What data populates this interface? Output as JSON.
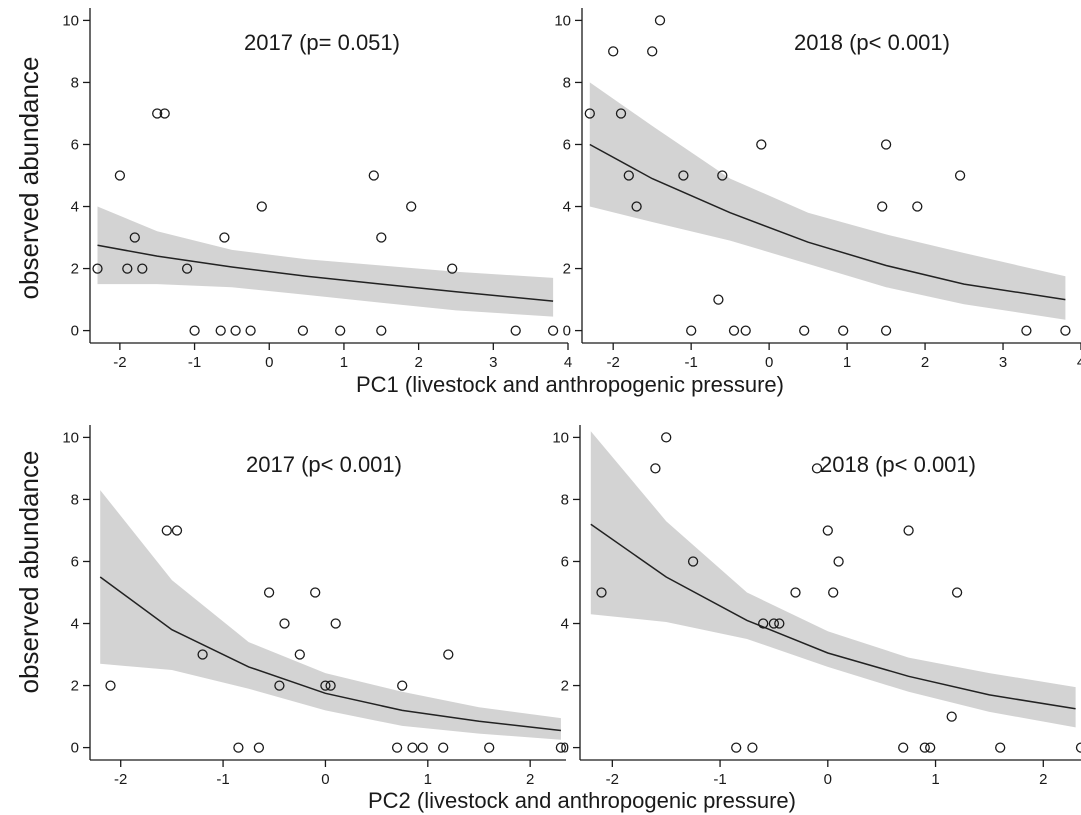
{
  "figure": {
    "ylabel_top": "observed abundance",
    "ylabel_bottom": "observed abundance",
    "xlabel_top": "PC1 (livestock and anthropogenic pressure)",
    "xlabel_bottom": "PC2 (livestock and anthropogenic pressure)"
  },
  "colors": {
    "band": "#d3d3d3",
    "line": "#222222",
    "point_stroke": "#1a1a1a",
    "axis": "#1a1a1a"
  },
  "chart_data": [
    {
      "type": "scatter",
      "title": "2017 (p= 0.051)",
      "xlabel": "PC1 (livestock and anthropogenic pressure)",
      "ylabel": "observed abundance",
      "xlim": [
        -2.4,
        4.0
      ],
      "ylim": [
        -0.4,
        10.4
      ],
      "xticks": [
        -2,
        -1,
        0,
        1,
        2,
        3,
        4
      ],
      "yticks": [
        0,
        2,
        4,
        6,
        8,
        10
      ],
      "points": [
        [
          -2.3,
          2
        ],
        [
          -2.0,
          5
        ],
        [
          -1.9,
          2
        ],
        [
          -1.8,
          3
        ],
        [
          -1.7,
          2
        ],
        [
          -1.5,
          7
        ],
        [
          -1.4,
          7
        ],
        [
          -1.1,
          2
        ],
        [
          -1.0,
          0
        ],
        [
          -0.65,
          0
        ],
        [
          -0.6,
          3
        ],
        [
          -0.45,
          0
        ],
        [
          -0.25,
          0
        ],
        [
          -0.1,
          4
        ],
        [
          0.45,
          0
        ],
        [
          0.95,
          0
        ],
        [
          1.4,
          5
        ],
        [
          1.5,
          3
        ],
        [
          1.5,
          0
        ],
        [
          1.9,
          4
        ],
        [
          2.45,
          2
        ],
        [
          3.3,
          0
        ],
        [
          3.8,
          0
        ]
      ],
      "fit": {
        "x": [
          -2.3,
          -1.5,
          -0.5,
          0.5,
          1.5,
          2.5,
          3.8
        ],
        "y": [
          2.75,
          2.4,
          2.05,
          1.75,
          1.5,
          1.25,
          0.95
        ]
      },
      "ci_lower": [
        1.5,
        1.5,
        1.4,
        1.15,
        0.9,
        0.65,
        0.45
      ],
      "ci_upper": [
        4.0,
        3.2,
        2.6,
        2.3,
        2.1,
        1.9,
        1.7
      ]
    },
    {
      "type": "scatter",
      "title": "2018 (p< 0.001)",
      "xlabel": "PC1 (livestock and anthropogenic pressure)",
      "ylabel": "",
      "xlim": [
        -2.4,
        4.0
      ],
      "ylim": [
        -0.4,
        10.4
      ],
      "xticks": [
        -2,
        -1,
        0,
        1,
        2,
        3,
        4
      ],
      "yticks": [
        0,
        2,
        4,
        6,
        8,
        10
      ],
      "points": [
        [
          -2.3,
          7
        ],
        [
          -2.0,
          9
        ],
        [
          -1.9,
          7
        ],
        [
          -1.8,
          5
        ],
        [
          -1.7,
          4
        ],
        [
          -1.5,
          9
        ],
        [
          -1.4,
          10
        ],
        [
          -1.1,
          5
        ],
        [
          -1.0,
          0
        ],
        [
          -0.65,
          1
        ],
        [
          -0.6,
          5
        ],
        [
          -0.45,
          0
        ],
        [
          -0.3,
          0
        ],
        [
          -0.1,
          6
        ],
        [
          0.45,
          0
        ],
        [
          0.95,
          0
        ],
        [
          1.45,
          4
        ],
        [
          1.5,
          6
        ],
        [
          1.5,
          0
        ],
        [
          1.9,
          4
        ],
        [
          2.45,
          5
        ],
        [
          3.3,
          0
        ],
        [
          3.8,
          0
        ]
      ],
      "fit": {
        "x": [
          -2.3,
          -1.5,
          -0.5,
          0.5,
          1.5,
          2.5,
          3.8
        ],
        "y": [
          6.0,
          4.9,
          3.8,
          2.85,
          2.1,
          1.5,
          1.0
        ]
      },
      "ci_lower": [
        4.0,
        3.5,
        2.9,
        2.15,
        1.4,
        0.85,
        0.35
      ],
      "ci_upper": [
        8.0,
        6.6,
        4.9,
        3.8,
        3.1,
        2.5,
        1.75
      ]
    },
    {
      "type": "scatter",
      "title": "2017 (p< 0.001)",
      "xlabel": "PC2 (livestock and anthropogenic pressure)",
      "ylabel": "observed abundance",
      "xlim": [
        -2.3,
        2.35
      ],
      "ylim": [
        -0.4,
        10.4
      ],
      "xticks": [
        -2,
        -1,
        0,
        1,
        2
      ],
      "yticks": [
        0,
        2,
        4,
        6,
        8,
        10
      ],
      "points": [
        [
          -2.1,
          2
        ],
        [
          -1.55,
          7
        ],
        [
          -1.45,
          7
        ],
        [
          -1.2,
          3
        ],
        [
          -0.85,
          0
        ],
        [
          -0.65,
          0
        ],
        [
          -0.55,
          5
        ],
        [
          -0.45,
          2
        ],
        [
          -0.4,
          4
        ],
        [
          -0.25,
          3
        ],
        [
          -0.1,
          5
        ],
        [
          0.0,
          2
        ],
        [
          0.05,
          2
        ],
        [
          0.1,
          4
        ],
        [
          0.7,
          0
        ],
        [
          0.75,
          2
        ],
        [
          0.85,
          0
        ],
        [
          0.95,
          0
        ],
        [
          1.15,
          0
        ],
        [
          1.2,
          3
        ],
        [
          1.6,
          0
        ],
        [
          2.3,
          0
        ]
      ],
      "fit": {
        "x": [
          -2.2,
          -1.5,
          -0.75,
          0,
          0.75,
          1.5,
          2.3
        ],
        "y": [
          5.5,
          3.8,
          2.6,
          1.75,
          1.2,
          0.85,
          0.55
        ]
      },
      "ci_lower": [
        2.7,
        2.5,
        1.9,
        1.2,
        0.7,
        0.45,
        0.25
      ],
      "ci_upper": [
        8.3,
        5.4,
        3.4,
        2.4,
        1.8,
        1.3,
        0.95
      ]
    },
    {
      "type": "scatter",
      "title": "2018 (p< 0.001)",
      "xlabel": "PC2 (livestock and anthropogenic pressure)",
      "ylabel": "",
      "xlim": [
        -2.3,
        2.35
      ],
      "ylim": [
        -0.4,
        10.4
      ],
      "xticks": [
        -2,
        -1,
        0,
        1,
        2
      ],
      "yticks": [
        0,
        2,
        4,
        6,
        8,
        10
      ],
      "points": [
        [
          -2.1,
          5
        ],
        [
          -1.6,
          9
        ],
        [
          -1.5,
          10
        ],
        [
          -1.25,
          6
        ],
        [
          -0.85,
          0
        ],
        [
          -0.7,
          0
        ],
        [
          -0.6,
          4
        ],
        [
          -0.5,
          4
        ],
        [
          -0.45,
          4
        ],
        [
          -0.3,
          5
        ],
        [
          -0.1,
          9
        ],
        [
          0.0,
          7
        ],
        [
          0.05,
          5
        ],
        [
          0.1,
          6
        ],
        [
          0.7,
          0
        ],
        [
          0.75,
          7
        ],
        [
          0.9,
          0
        ],
        [
          0.95,
          0
        ],
        [
          1.15,
          1
        ],
        [
          1.2,
          5
        ],
        [
          1.6,
          0
        ],
        [
          2.35,
          0
        ]
      ],
      "fit": {
        "x": [
          -2.2,
          -1.5,
          -0.75,
          0,
          0.75,
          1.5,
          2.3
        ],
        "y": [
          7.2,
          5.5,
          4.1,
          3.05,
          2.3,
          1.7,
          1.25
        ]
      },
      "ci_lower": [
        4.3,
        4.05,
        3.5,
        2.6,
        1.8,
        1.15,
        0.65
      ],
      "ci_upper": [
        10.2,
        7.3,
        5.0,
        3.75,
        2.9,
        2.4,
        1.95
      ]
    }
  ]
}
